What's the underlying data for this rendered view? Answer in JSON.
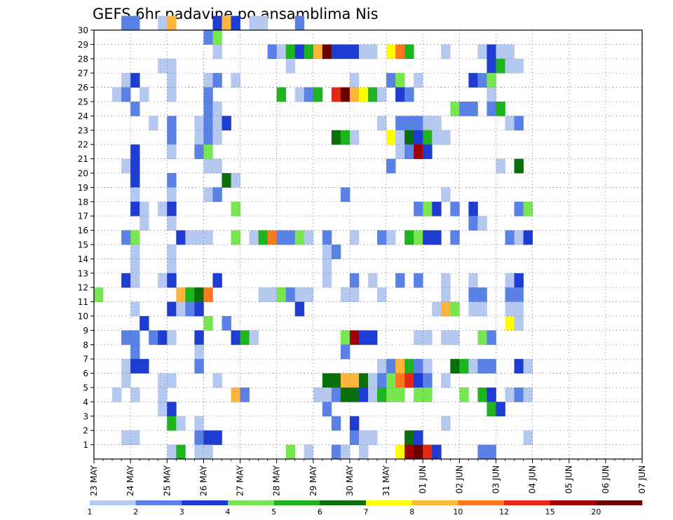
{
  "chart_data": {
    "type": "heatmap",
    "title": "GEFS 6hr padavine po ansamblima Nis",
    "y_ticks": [
      "1",
      "2",
      "3",
      "4",
      "5",
      "6",
      "7",
      "8",
      "9",
      "10",
      "11",
      "12",
      "13",
      "14",
      "15",
      "16",
      "17",
      "18",
      "19",
      "20",
      "21",
      "22",
      "23",
      "24",
      "25",
      "26",
      "27",
      "28",
      "29",
      "30"
    ],
    "x_ticks": [
      "23 MAY",
      "24 MAY",
      "25 MAY",
      "26 MAY",
      "27 MAY",
      "28 MAY",
      "29 MAY",
      "30 MAY",
      "31 MAY",
      "01 JUN",
      "02 JUN",
      "03 JUN",
      "04 JUN",
      "05 JUN",
      "06 JUN",
      "07 JUN"
    ],
    "x_range_days": [
      0,
      15
    ],
    "steps_per_day": 4,
    "y_range": [
      0,
      30
    ],
    "grid": true,
    "legend_position": "bottom",
    "legend_labels": [
      "1",
      "2",
      "3",
      "4",
      "5",
      "6",
      "7",
      "8",
      "10",
      "12",
      "15",
      "20"
    ],
    "color_scale": [
      "#b4c8f0",
      "#5a82e6",
      "#1e3cd2",
      "#78e650",
      "#1eb41e",
      "#0a6e0a",
      "#ffff00",
      "#ffb43c",
      "#ff781e",
      "#e62814",
      "#a00000",
      "#6e0000"
    ],
    "color_scale_note": "levels 1..12 map to color_scale[0..11]",
    "cells": [
      [
        3,
        30,
        2
      ],
      [
        4,
        30,
        2
      ],
      [
        7,
        30,
        1
      ],
      [
        8,
        30,
        8
      ],
      [
        13,
        30,
        3
      ],
      [
        14,
        30,
        8
      ],
      [
        15,
        30,
        3
      ],
      [
        17,
        30,
        1
      ],
      [
        18,
        30,
        1
      ],
      [
        22,
        30,
        2
      ],
      [
        12,
        29,
        2
      ],
      [
        13,
        29,
        4
      ],
      [
        13,
        28,
        1
      ],
      [
        19,
        28,
        2
      ],
      [
        20,
        28,
        1
      ],
      [
        21,
        28,
        5
      ],
      [
        22,
        28,
        3
      ],
      [
        23,
        28,
        5
      ],
      [
        24,
        28,
        8
      ],
      [
        25,
        28,
        12
      ],
      [
        26,
        28,
        3
      ],
      [
        27,
        28,
        3
      ],
      [
        28,
        28,
        3
      ],
      [
        29,
        28,
        1
      ],
      [
        30,
        28,
        1
      ],
      [
        32,
        28,
        7
      ],
      [
        33,
        28,
        9
      ],
      [
        34,
        28,
        5
      ],
      [
        38,
        28,
        1
      ],
      [
        42,
        28,
        1
      ],
      [
        43,
        28,
        3
      ],
      [
        44,
        28,
        1
      ],
      [
        45,
        28,
        1
      ],
      [
        7,
        27,
        1
      ],
      [
        8,
        27,
        1
      ],
      [
        21,
        27,
        1
      ],
      [
        43,
        27,
        3
      ],
      [
        44,
        27,
        5
      ],
      [
        45,
        27,
        1
      ],
      [
        46,
        27,
        1
      ],
      [
        3,
        26,
        1
      ],
      [
        4,
        26,
        3
      ],
      [
        8,
        26,
        1
      ],
      [
        12,
        26,
        1
      ],
      [
        13,
        26,
        2
      ],
      [
        15,
        26,
        1
      ],
      [
        28,
        26,
        1
      ],
      [
        32,
        26,
        2
      ],
      [
        33,
        26,
        4
      ],
      [
        35,
        26,
        1
      ],
      [
        41,
        26,
        3
      ],
      [
        42,
        26,
        2
      ],
      [
        43,
        26,
        4
      ],
      [
        2,
        25,
        1
      ],
      [
        3,
        25,
        2
      ],
      [
        5,
        25,
        1
      ],
      [
        8,
        25,
        1
      ],
      [
        12,
        25,
        2
      ],
      [
        20,
        25,
        5
      ],
      [
        22,
        25,
        1
      ],
      [
        23,
        25,
        2
      ],
      [
        24,
        25,
        5
      ],
      [
        26,
        25,
        10
      ],
      [
        27,
        25,
        12
      ],
      [
        28,
        25,
        8
      ],
      [
        29,
        25,
        7
      ],
      [
        30,
        25,
        5
      ],
      [
        31,
        25,
        1
      ],
      [
        33,
        25,
        3
      ],
      [
        34,
        25,
        2
      ],
      [
        43,
        25,
        1
      ],
      [
        4,
        24,
        2
      ],
      [
        12,
        24,
        2
      ],
      [
        13,
        24,
        1
      ],
      [
        39,
        24,
        4
      ],
      [
        40,
        24,
        2
      ],
      [
        41,
        24,
        2
      ],
      [
        43,
        24,
        2
      ],
      [
        44,
        24,
        5
      ],
      [
        6,
        23,
        1
      ],
      [
        8,
        23,
        2
      ],
      [
        11,
        23,
        1
      ],
      [
        12,
        23,
        2
      ],
      [
        13,
        23,
        1
      ],
      [
        14,
        23,
        3
      ],
      [
        31,
        23,
        1
      ],
      [
        33,
        23,
        2
      ],
      [
        34,
        23,
        2
      ],
      [
        35,
        23,
        2
      ],
      [
        36,
        23,
        1
      ],
      [
        37,
        23,
        1
      ],
      [
        45,
        23,
        1
      ],
      [
        46,
        23,
        2
      ],
      [
        8,
        22,
        2
      ],
      [
        11,
        22,
        1
      ],
      [
        12,
        22,
        2
      ],
      [
        13,
        22,
        1
      ],
      [
        26,
        22,
        6
      ],
      [
        27,
        22,
        5
      ],
      [
        28,
        22,
        1
      ],
      [
        32,
        22,
        7
      ],
      [
        33,
        22,
        1
      ],
      [
        34,
        22,
        6
      ],
      [
        35,
        22,
        3
      ],
      [
        36,
        22,
        5
      ],
      [
        37,
        22,
        1
      ],
      [
        38,
        22,
        1
      ],
      [
        4,
        21,
        3
      ],
      [
        8,
        21,
        1
      ],
      [
        11,
        21,
        2
      ],
      [
        12,
        21,
        4
      ],
      [
        33,
        21,
        1
      ],
      [
        34,
        21,
        2
      ],
      [
        35,
        21,
        11
      ],
      [
        36,
        21,
        3
      ],
      [
        3,
        20,
        1
      ],
      [
        4,
        20,
        3
      ],
      [
        12,
        20,
        1
      ],
      [
        13,
        20,
        1
      ],
      [
        32,
        20,
        2
      ],
      [
        44,
        20,
        1
      ],
      [
        46,
        20,
        6
      ],
      [
        4,
        19,
        3
      ],
      [
        8,
        19,
        2
      ],
      [
        14,
        19,
        6
      ],
      [
        15,
        19,
        1
      ],
      [
        4,
        18,
        1
      ],
      [
        8,
        18,
        1
      ],
      [
        12,
        18,
        1
      ],
      [
        13,
        18,
        2
      ],
      [
        27,
        18,
        2
      ],
      [
        38,
        18,
        1
      ],
      [
        4,
        17,
        3
      ],
      [
        5,
        17,
        1
      ],
      [
        7,
        17,
        1
      ],
      [
        8,
        17,
        3
      ],
      [
        15,
        17,
        4
      ],
      [
        35,
        17,
        2
      ],
      [
        36,
        17,
        4
      ],
      [
        37,
        17,
        3
      ],
      [
        39,
        17,
        2
      ],
      [
        41,
        17,
        3
      ],
      [
        46,
        17,
        2
      ],
      [
        47,
        17,
        4
      ],
      [
        5,
        16,
        1
      ],
      [
        8,
        16,
        1
      ],
      [
        41,
        16,
        2
      ],
      [
        42,
        16,
        1
      ],
      [
        3,
        15,
        2
      ],
      [
        4,
        15,
        4
      ],
      [
        9,
        15,
        3
      ],
      [
        10,
        15,
        1
      ],
      [
        11,
        15,
        1
      ],
      [
        12,
        15,
        1
      ],
      [
        15,
        15,
        4
      ],
      [
        17,
        15,
        1
      ],
      [
        18,
        15,
        5
      ],
      [
        19,
        15,
        9
      ],
      [
        20,
        15,
        2
      ],
      [
        21,
        15,
        2
      ],
      [
        22,
        15,
        4
      ],
      [
        23,
        15,
        1
      ],
      [
        25,
        15,
        2
      ],
      [
        28,
        15,
        1
      ],
      [
        31,
        15,
        2
      ],
      [
        32,
        15,
        1
      ],
      [
        34,
        15,
        5
      ],
      [
        35,
        15,
        4
      ],
      [
        36,
        15,
        3
      ],
      [
        37,
        15,
        3
      ],
      [
        39,
        15,
        2
      ],
      [
        45,
        15,
        2
      ],
      [
        46,
        15,
        1
      ],
      [
        47,
        15,
        3
      ],
      [
        4,
        14,
        1
      ],
      [
        8,
        14,
        1
      ],
      [
        25,
        14,
        1
      ],
      [
        26,
        14,
        2
      ],
      [
        4,
        13,
        1
      ],
      [
        8,
        13,
        1
      ],
      [
        25,
        13,
        1
      ],
      [
        3,
        12,
        3
      ],
      [
        4,
        12,
        1
      ],
      [
        7,
        12,
        1
      ],
      [
        8,
        12,
        3
      ],
      [
        13,
        12,
        3
      ],
      [
        25,
        12,
        1
      ],
      [
        28,
        12,
        2
      ],
      [
        30,
        12,
        1
      ],
      [
        33,
        12,
        2
      ],
      [
        35,
        12,
        2
      ],
      [
        38,
        12,
        1
      ],
      [
        41,
        12,
        1
      ],
      [
        45,
        12,
        1
      ],
      [
        46,
        12,
        3
      ],
      [
        0,
        11,
        4
      ],
      [
        9,
        11,
        8
      ],
      [
        10,
        11,
        5
      ],
      [
        11,
        11,
        6
      ],
      [
        12,
        11,
        9
      ],
      [
        18,
        11,
        1
      ],
      [
        19,
        11,
        1
      ],
      [
        20,
        11,
        4
      ],
      [
        21,
        11,
        2
      ],
      [
        22,
        11,
        1
      ],
      [
        23,
        11,
        1
      ],
      [
        27,
        11,
        1
      ],
      [
        28,
        11,
        1
      ],
      [
        31,
        11,
        1
      ],
      [
        38,
        11,
        1
      ],
      [
        41,
        11,
        2
      ],
      [
        42,
        11,
        2
      ],
      [
        45,
        11,
        2
      ],
      [
        46,
        11,
        2
      ],
      [
        4,
        10,
        1
      ],
      [
        8,
        10,
        3
      ],
      [
        9,
        10,
        1
      ],
      [
        10,
        10,
        2
      ],
      [
        11,
        10,
        3
      ],
      [
        22,
        10,
        3
      ],
      [
        37,
        10,
        1
      ],
      [
        38,
        10,
        8
      ],
      [
        39,
        10,
        4
      ],
      [
        41,
        10,
        1
      ],
      [
        42,
        10,
        1
      ],
      [
        45,
        10,
        1
      ],
      [
        46,
        10,
        1
      ],
      [
        5,
        9,
        3
      ],
      [
        12,
        9,
        4
      ],
      [
        14,
        9,
        2
      ],
      [
        45,
        9,
        7
      ],
      [
        46,
        9,
        1
      ],
      [
        3,
        8,
        2
      ],
      [
        4,
        8,
        2
      ],
      [
        6,
        8,
        2
      ],
      [
        7,
        8,
        3
      ],
      [
        8,
        8,
        1
      ],
      [
        11,
        8,
        3
      ],
      [
        15,
        8,
        3
      ],
      [
        16,
        8,
        5
      ],
      [
        17,
        8,
        1
      ],
      [
        27,
        8,
        4
      ],
      [
        28,
        8,
        11
      ],
      [
        29,
        8,
        3
      ],
      [
        30,
        8,
        3
      ],
      [
        35,
        8,
        1
      ],
      [
        36,
        8,
        1
      ],
      [
        38,
        8,
        1
      ],
      [
        39,
        8,
        1
      ],
      [
        42,
        8,
        4
      ],
      [
        43,
        8,
        2
      ],
      [
        4,
        7,
        2
      ],
      [
        11,
        7,
        1
      ],
      [
        27,
        7,
        2
      ],
      [
        3,
        6,
        1
      ],
      [
        4,
        6,
        3
      ],
      [
        5,
        6,
        3
      ],
      [
        11,
        6,
        2
      ],
      [
        31,
        6,
        1
      ],
      [
        32,
        6,
        2
      ],
      [
        33,
        6,
        8
      ],
      [
        34,
        6,
        5
      ],
      [
        35,
        6,
        2
      ],
      [
        36,
        6,
        1
      ],
      [
        39,
        6,
        6
      ],
      [
        40,
        6,
        5
      ],
      [
        41,
        6,
        1
      ],
      [
        42,
        6,
        2
      ],
      [
        43,
        6,
        2
      ],
      [
        46,
        6,
        3
      ],
      [
        47,
        6,
        1
      ],
      [
        3,
        5,
        1
      ],
      [
        7,
        5,
        1
      ],
      [
        8,
        5,
        1
      ],
      [
        13,
        5,
        1
      ],
      [
        25,
        5,
        6
      ],
      [
        26,
        5,
        6
      ],
      [
        27,
        5,
        8
      ],
      [
        28,
        5,
        8
      ],
      [
        29,
        5,
        6
      ],
      [
        30,
        5,
        1
      ],
      [
        31,
        5,
        2
      ],
      [
        32,
        5,
        4
      ],
      [
        33,
        5,
        9
      ],
      [
        34,
        5,
        10
      ],
      [
        35,
        5,
        3
      ],
      [
        36,
        5,
        2
      ],
      [
        38,
        5,
        1
      ],
      [
        2,
        4,
        1
      ],
      [
        4,
        4,
        1
      ],
      [
        7,
        4,
        1
      ],
      [
        15,
        4,
        8
      ],
      [
        16,
        4,
        2
      ],
      [
        24,
        4,
        1
      ],
      [
        25,
        4,
        1
      ],
      [
        26,
        4,
        2
      ],
      [
        27,
        4,
        6
      ],
      [
        28,
        4,
        6
      ],
      [
        29,
        4,
        3
      ],
      [
        30,
        4,
        1
      ],
      [
        31,
        4,
        5
      ],
      [
        32,
        4,
        4
      ],
      [
        33,
        4,
        4
      ],
      [
        35,
        4,
        4
      ],
      [
        36,
        4,
        4
      ],
      [
        40,
        4,
        4
      ],
      [
        42,
        4,
        5
      ],
      [
        43,
        4,
        3
      ],
      [
        45,
        4,
        1
      ],
      [
        46,
        4,
        2
      ],
      [
        47,
        4,
        1
      ],
      [
        7,
        3,
        1
      ],
      [
        8,
        3,
        3
      ],
      [
        25,
        3,
        2
      ],
      [
        43,
        3,
        5
      ],
      [
        44,
        3,
        3
      ],
      [
        8,
        2,
        5
      ],
      [
        9,
        2,
        1
      ],
      [
        11,
        2,
        1
      ],
      [
        26,
        2,
        2
      ],
      [
        28,
        2,
        3
      ],
      [
        38,
        2,
        1
      ],
      [
        3,
        1,
        1
      ],
      [
        4,
        1,
        1
      ],
      [
        11,
        1,
        2
      ],
      [
        12,
        1,
        3
      ],
      [
        13,
        1,
        3
      ],
      [
        28,
        1,
        2
      ],
      [
        29,
        1,
        1
      ],
      [
        30,
        1,
        1
      ],
      [
        34,
        1,
        6
      ],
      [
        35,
        1,
        3
      ],
      [
        47,
        1,
        1
      ],
      [
        8,
        0,
        1
      ],
      [
        9,
        0,
        5
      ],
      [
        11,
        0,
        1
      ],
      [
        12,
        0,
        1
      ],
      [
        21,
        0,
        4
      ],
      [
        23,
        0,
        1
      ],
      [
        26,
        0,
        2
      ],
      [
        27,
        0,
        1
      ],
      [
        29,
        0,
        1
      ],
      [
        33,
        0,
        7
      ],
      [
        34,
        0,
        11
      ],
      [
        35,
        0,
        12
      ],
      [
        36,
        0,
        10
      ],
      [
        37,
        0,
        3
      ],
      [
        42,
        0,
        2
      ],
      [
        43,
        0,
        2
      ]
    ]
  }
}
